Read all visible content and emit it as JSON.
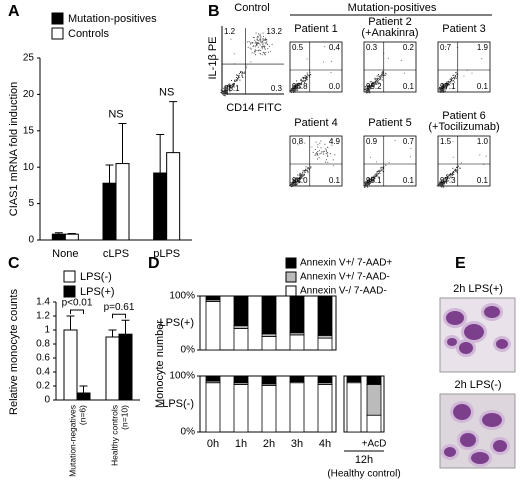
{
  "chart_data": [
    {
      "type": "bar",
      "panel": "A",
      "y_label": "CIAS1 mRNA fold induction",
      "categories": [
        "None",
        "cLPS",
        "pLPS"
      ],
      "series": [
        {
          "name": "Mutation-positives",
          "color": "#000000",
          "values": [
            0.8,
            7.8,
            9.2
          ],
          "errors": [
            0.2,
            2.5,
            5.3
          ]
        },
        {
          "name": "Controls",
          "color": "#ffffff",
          "values": [
            0.8,
            10.5,
            12
          ],
          "errors": [
            0.1,
            5.5,
            7
          ]
        }
      ],
      "ylim": [
        0,
        25
      ],
      "yticks": [
        0,
        5,
        10,
        15,
        20,
        25
      ],
      "annotations": [
        "NS",
        "NS"
      ]
    },
    {
      "type": "bar",
      "panel": "C",
      "y_label": "Relative monocyte counts",
      "categories": [
        [
          "Mutation-negatives",
          "(n=6)"
        ],
        [
          "Healthy controls",
          "(n=10)"
        ]
      ],
      "series": [
        {
          "name": "LPS(-)",
          "color": "#ffffff",
          "values": [
            1.0,
            0.9
          ],
          "errors": [
            0.2,
            0.1
          ]
        },
        {
          "name": "LPS(+)",
          "color": "#000000",
          "values": [
            0.1,
            0.94
          ],
          "errors": [
            0.1,
            0.2
          ]
        }
      ],
      "ylim": [
        0,
        1.4
      ],
      "yticks": [
        0,
        0.2,
        0.4,
        0.6,
        0.8,
        1,
        1.2,
        1.4
      ],
      "annotations": [
        "p<0.01",
        "p=0.61"
      ]
    },
    {
      "type": "stacked_bar",
      "panel": "D",
      "y_label": "Monocyte number",
      "series": [
        {
          "name": "Annexin V+/ 7-AAD+",
          "color": "#000000"
        },
        {
          "name": "Annexin V+/ 7-AAD-",
          "color": "#bbbbbb"
        },
        {
          "name": "Annexin V-/ 7-AAD-",
          "color": "#ffffff"
        }
      ],
      "categories": [
        "0h",
        "1h",
        "2h",
        "3h",
        "4h"
      ],
      "ylim": [
        0,
        100
      ],
      "yticks": [
        {
          "value": 100,
          "label": "100%"
        },
        {
          "value": 0,
          "label": "0%"
        }
      ],
      "rows": [
        {
          "label": "LPS(+)",
          "values": [
            [
              7,
              55,
              70,
              68,
              73
            ],
            [
              3,
              5,
              5,
              4,
              5
            ],
            [
              90,
              40,
              25,
              28,
              22
            ]
          ]
        },
        {
          "label": "LPS(-)",
          "values": [
            [
              9,
              12,
              14,
              10,
              12
            ],
            [
              3,
              3,
              3,
              2,
              3
            ],
            [
              88,
              85,
              83,
              88,
              85
            ]
          ],
          "aside": {
            "categories": [
              null,
              "+AcD"
            ],
            "group_label": "12h",
            "note": "(Healthy control)",
            "values": [
              [
                10,
                15
              ],
              [
                2,
                55
              ],
              [
                88,
                30
              ]
            ]
          }
        }
      ]
    }
  ],
  "flow": {
    "panel": "B",
    "header_group": "Mutation-positives",
    "y_label": "IL-1β PE",
    "x_label": "CD14 FITC",
    "plots": [
      {
        "name": "Control",
        "quadrants": [
          "1.2",
          "13.2",
          "85.1",
          "0.3"
        ]
      },
      {
        "name": "Patient 1",
        "quadrants": [
          "0.5",
          "0.4",
          "98.8",
          "0.0"
        ]
      },
      {
        "name": "Patient 2",
        "note": "(+Anakinra)",
        "quadrants": [
          "0.3",
          "0.2",
          "99.2",
          "0.1"
        ]
      },
      {
        "name": "Patient 3",
        "quadrants": [
          "0.7",
          "1.9",
          "97.1",
          "0.1"
        ]
      },
      {
        "name": "Patient 4",
        "quadrants": [
          "0.8",
          "4.9",
          "94.0",
          "0.1"
        ]
      },
      {
        "name": "Patient 5",
        "quadrants": [
          "0.9",
          "0.7",
          "98.1",
          "0.1"
        ]
      },
      {
        "name": "Patient 6",
        "note": "(+Tocilizumab)",
        "quadrants": [
          "1.5",
          "1.0",
          "97.3",
          "0.1"
        ]
      }
    ]
  },
  "images": {
    "panel": "E",
    "captions": [
      "2h LPS(+)",
      "2h LPS(-)"
    ]
  }
}
